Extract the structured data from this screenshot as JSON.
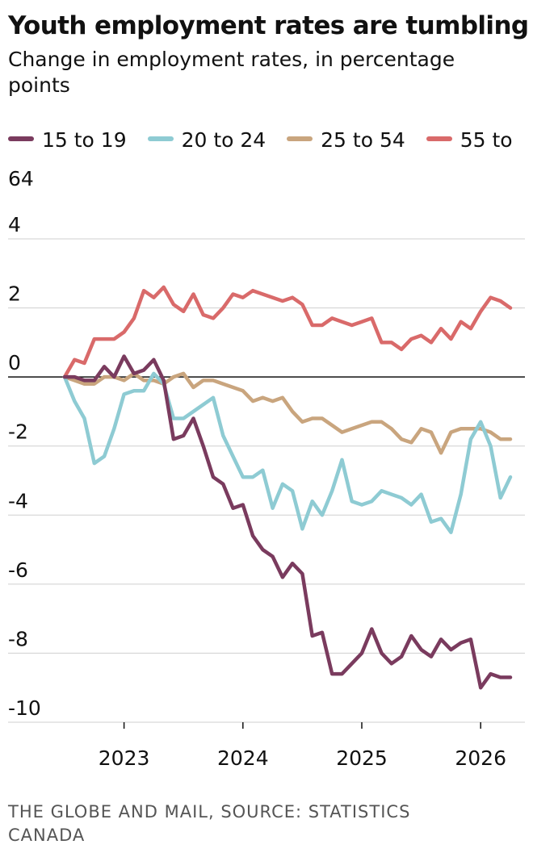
{
  "title": "Youth employment rates are tumbling",
  "subtitle": "Change in employment rates, in percentage points",
  "source": "THE GLOBE AND MAIL, SOURCE: STATISTICS CANADA",
  "legend": [
    {
      "name": "15 to 19",
      "color": "#7a3b5e"
    },
    {
      "name": "20 to 24",
      "color": "#8ecbd3"
    },
    {
      "name": "25 to 54",
      "color": "#c9a57e"
    },
    {
      "name": "55 to 64",
      "color": "#d96a6a"
    }
  ],
  "chart_data": {
    "type": "line",
    "title": "Youth employment rates are tumbling",
    "subtitle": "Change in employment rates, in percentage points",
    "xlabel": "",
    "ylabel": "",
    "ylim": [
      -10,
      4
    ],
    "yticks": [
      4,
      2,
      0,
      -2,
      -4,
      -6,
      -8,
      -10
    ],
    "xticks": [
      2023,
      2024,
      2025,
      2026
    ],
    "xlim": [
      2022.4,
      2026.25
    ],
    "grid": true,
    "legend_position": "top",
    "x_start": 2022.5,
    "x_step_months": 1,
    "series": [
      {
        "name": "15 to 19",
        "color": "#7a3b5e",
        "values": [
          0,
          0,
          -0.1,
          -0.1,
          0.3,
          0,
          0.6,
          0.1,
          0.2,
          0.5,
          -0.1,
          -1.8,
          -1.7,
          -1.2,
          -2.0,
          -2.9,
          -3.1,
          -3.8,
          -3.7,
          -4.6,
          -5.0,
          -5.2,
          -5.8,
          -5.4,
          -5.7,
          -7.5,
          -7.4,
          -8.6,
          -8.6,
          -8.3,
          -8.0,
          -7.3,
          -8.0,
          -8.3,
          -8.1,
          -7.5,
          -7.9,
          -8.1,
          -7.6,
          -7.9,
          -7.7,
          -7.6,
          -9.0,
          -8.6,
          -8.7,
          -8.7
        ]
      },
      {
        "name": "20 to 24",
        "color": "#8ecbd3",
        "values": [
          0,
          -0.7,
          -1.2,
          -2.5,
          -2.3,
          -1.5,
          -0.5,
          -0.4,
          -0.4,
          0.1,
          -0.2,
          -1.2,
          -1.2,
          -1.0,
          -0.8,
          -0.6,
          -1.7,
          -2.3,
          -2.9,
          -2.9,
          -2.7,
          -3.8,
          -3.1,
          -3.3,
          -4.4,
          -3.6,
          -4.0,
          -3.3,
          -2.4,
          -3.6,
          -3.7,
          -3.6,
          -3.3,
          -3.4,
          -3.5,
          -3.7,
          -3.4,
          -4.2,
          -4.1,
          -4.5,
          -3.4,
          -1.8,
          -1.3,
          -2.0,
          -3.5,
          -2.9
        ]
      },
      {
        "name": "25 to 54",
        "color": "#c9a57e",
        "values": [
          0,
          -0.1,
          -0.2,
          -0.2,
          0,
          0,
          -0.1,
          0.1,
          -0.1,
          -0.1,
          -0.2,
          0,
          0.1,
          -0.3,
          -0.1,
          -0.1,
          -0.2,
          -0.3,
          -0.4,
          -0.7,
          -0.6,
          -0.7,
          -0.6,
          -1.0,
          -1.3,
          -1.2,
          -1.2,
          -1.4,
          -1.6,
          -1.5,
          -1.4,
          -1.3,
          -1.3,
          -1.5,
          -1.8,
          -1.9,
          -1.5,
          -1.6,
          -2.2,
          -1.6,
          -1.5,
          -1.5,
          -1.5,
          -1.6,
          -1.8,
          -1.8
        ]
      },
      {
        "name": "55 to 64",
        "color": "#d96a6a",
        "values": [
          0,
          0.5,
          0.4,
          1.1,
          1.1,
          1.1,
          1.3,
          1.7,
          2.5,
          2.3,
          2.6,
          2.1,
          1.9,
          2.4,
          1.8,
          1.7,
          2.0,
          2.4,
          2.3,
          2.5,
          2.4,
          2.3,
          2.2,
          2.3,
          2.1,
          1.5,
          1.5,
          1.7,
          1.6,
          1.5,
          1.6,
          1.7,
          1.0,
          1.0,
          0.8,
          1.1,
          1.2,
          1.0,
          1.4,
          1.1,
          1.6,
          1.4,
          1.9,
          2.3,
          2.2,
          2.0
        ]
      }
    ]
  }
}
